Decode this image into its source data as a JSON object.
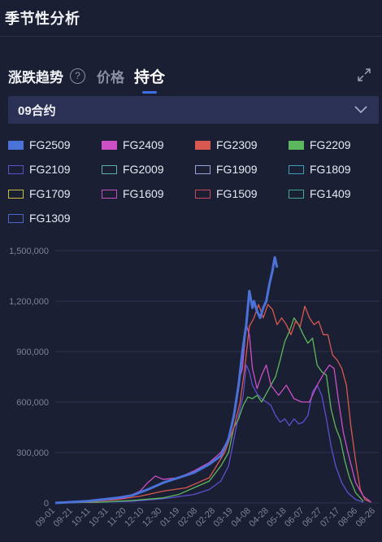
{
  "header": {
    "title": "季节性分析"
  },
  "tabs": {
    "trend": "涨跌趋势",
    "help": "?",
    "price": "价格",
    "holding": "持仓"
  },
  "select": {
    "value": "09合约"
  },
  "colors": {
    "background": "#1b1f33",
    "accent": "#3d6fe6",
    "select_bg": "#2a3155"
  },
  "chart_data": {
    "type": "line",
    "title": "",
    "xlabel": "",
    "ylabel": "",
    "ylim": [
      0,
      1500000
    ],
    "yticks": [
      "0",
      "300,000",
      "600,000",
      "900,000",
      "1,200,000",
      "1,500,000"
    ],
    "x_labels": [
      "09-01",
      "09-21",
      "10-11",
      "10-31",
      "11-20",
      "12-10",
      "12-30",
      "01-19",
      "02-08",
      "02-28",
      "03-19",
      "04-08",
      "04-28",
      "05-18",
      "06-07",
      "06-27",
      "07-17",
      "08-06",
      "08-26"
    ],
    "legend_position": "top",
    "grid": true,
    "series": [
      {
        "name": "FG2509",
        "color": "#4a72d9",
        "style": "filled",
        "values": [
          [
            0,
            0
          ],
          [
            20,
            5000
          ],
          [
            40,
            10000
          ],
          [
            60,
            20000
          ],
          [
            80,
            30000
          ],
          [
            100,
            45000
          ],
          [
            120,
            80000
          ],
          [
            140,
            120000
          ],
          [
            160,
            150000
          ],
          [
            180,
            180000
          ],
          [
            200,
            230000
          ],
          [
            215,
            280000
          ],
          [
            225,
            380000
          ],
          [
            232,
            520000
          ],
          [
            238,
            700000
          ],
          [
            243,
            900000
          ],
          [
            248,
            1060000
          ],
          [
            252,
            1260000
          ],
          [
            256,
            1160000
          ],
          [
            258,
            1200000
          ],
          [
            262,
            1140000
          ],
          [
            266,
            1100000
          ],
          [
            270,
            1160000
          ],
          [
            274,
            1200000
          ],
          [
            278,
            1300000
          ],
          [
            282,
            1380000
          ],
          [
            285,
            1460000
          ],
          [
            288,
            1400000
          ]
        ]
      },
      {
        "name": "FG2409",
        "color": "#cc4fc6",
        "style": "filled",
        "values": [
          [
            0,
            0
          ],
          [
            30,
            5000
          ],
          [
            60,
            15000
          ],
          [
            90,
            30000
          ],
          [
            110,
            70000
          ],
          [
            120,
            120000
          ],
          [
            130,
            160000
          ],
          [
            140,
            140000
          ],
          [
            160,
            150000
          ],
          [
            180,
            190000
          ],
          [
            200,
            240000
          ],
          [
            215,
            300000
          ],
          [
            225,
            380000
          ],
          [
            232,
            540000
          ],
          [
            238,
            720000
          ],
          [
            243,
            800000
          ],
          [
            248,
            1060000
          ],
          [
            252,
            1000000
          ],
          [
            256,
            800000
          ],
          [
            262,
            680000
          ],
          [
            268,
            760000
          ],
          [
            274,
            820000
          ],
          [
            280,
            700000
          ],
          [
            290,
            640000
          ],
          [
            300,
            700000
          ],
          [
            310,
            620000
          ],
          [
            320,
            600000
          ],
          [
            330,
            600000
          ],
          [
            340,
            700000
          ],
          [
            350,
            780000
          ],
          [
            356,
            820000
          ],
          [
            362,
            800000
          ],
          [
            368,
            600000
          ],
          [
            374,
            420000
          ],
          [
            380,
            300000
          ],
          [
            390,
            120000
          ],
          [
            400,
            40000
          ],
          [
            410,
            5000
          ]
        ]
      },
      {
        "name": "FG2309",
        "color": "#d9584f",
        "style": "filled",
        "values": [
          [
            0,
            0
          ],
          [
            40,
            5000
          ],
          [
            80,
            20000
          ],
          [
            110,
            40000
          ],
          [
            140,
            70000
          ],
          [
            170,
            90000
          ],
          [
            200,
            150000
          ],
          [
            220,
            300000
          ],
          [
            232,
            450000
          ],
          [
            240,
            600000
          ],
          [
            246,
            800000
          ],
          [
            252,
            1050000
          ],
          [
            258,
            1100000
          ],
          [
            264,
            1180000
          ],
          [
            270,
            1100000
          ],
          [
            276,
            1180000
          ],
          [
            282,
            1150000
          ],
          [
            288,
            1060000
          ],
          [
            294,
            1100000
          ],
          [
            300,
            1060000
          ],
          [
            306,
            1000000
          ],
          [
            312,
            1080000
          ],
          [
            318,
            1050000
          ],
          [
            324,
            1170000
          ],
          [
            330,
            1100000
          ],
          [
            336,
            1060000
          ],
          [
            342,
            1080000
          ],
          [
            348,
            1000000
          ],
          [
            354,
            1000000
          ],
          [
            360,
            880000
          ],
          [
            366,
            850000
          ],
          [
            372,
            800000
          ],
          [
            378,
            700000
          ],
          [
            384,
            450000
          ],
          [
            390,
            250000
          ],
          [
            396,
            80000
          ],
          [
            402,
            20000
          ],
          [
            410,
            5000
          ]
        ]
      },
      {
        "name": "FG2209",
        "color": "#5cb85c",
        "style": "filled",
        "values": [
          [
            0,
            0
          ],
          [
            60,
            5000
          ],
          [
            100,
            15000
          ],
          [
            140,
            30000
          ],
          [
            160,
            50000
          ],
          [
            180,
            90000
          ],
          [
            200,
            130000
          ],
          [
            215,
            220000
          ],
          [
            225,
            300000
          ],
          [
            232,
            450000
          ],
          [
            238,
            500000
          ],
          [
            244,
            580000
          ],
          [
            250,
            630000
          ],
          [
            256,
            620000
          ],
          [
            262,
            640000
          ],
          [
            268,
            600000
          ],
          [
            274,
            650000
          ],
          [
            280,
            700000
          ],
          [
            286,
            750000
          ],
          [
            292,
            850000
          ],
          [
            298,
            960000
          ],
          [
            304,
            1020000
          ],
          [
            310,
            1100000
          ],
          [
            316,
            1060000
          ],
          [
            322,
            1000000
          ],
          [
            328,
            950000
          ],
          [
            334,
            980000
          ],
          [
            340,
            820000
          ],
          [
            346,
            780000
          ],
          [
            352,
            760000
          ],
          [
            358,
            560000
          ],
          [
            364,
            450000
          ],
          [
            370,
            380000
          ],
          [
            376,
            250000
          ],
          [
            382,
            150000
          ],
          [
            390,
            60000
          ],
          [
            400,
            10000
          ]
        ]
      },
      {
        "name": "FG2109",
        "color": "#5e4fd1",
        "style": "outline",
        "values": [
          [
            0,
            0
          ],
          [
            60,
            5000
          ],
          [
            100,
            10000
          ],
          [
            140,
            25000
          ],
          [
            180,
            50000
          ],
          [
            200,
            80000
          ],
          [
            215,
            130000
          ],
          [
            225,
            220000
          ],
          [
            232,
            380000
          ],
          [
            238,
            520000
          ],
          [
            244,
            640000
          ],
          [
            248,
            820000
          ],
          [
            252,
            780000
          ],
          [
            256,
            700000
          ],
          [
            262,
            650000
          ],
          [
            268,
            620000
          ],
          [
            274,
            600000
          ],
          [
            280,
            580000
          ],
          [
            286,
            520000
          ],
          [
            292,
            480000
          ],
          [
            298,
            500000
          ],
          [
            304,
            460000
          ],
          [
            310,
            500000
          ],
          [
            316,
            470000
          ],
          [
            322,
            480000
          ],
          [
            328,
            520000
          ],
          [
            334,
            660000
          ],
          [
            340,
            700000
          ],
          [
            346,
            640000
          ],
          [
            352,
            500000
          ],
          [
            358,
            340000
          ],
          [
            364,
            220000
          ],
          [
            372,
            120000
          ],
          [
            380,
            60000
          ],
          [
            390,
            20000
          ],
          [
            400,
            5000
          ]
        ]
      },
      {
        "name": "FG2009",
        "color": "#5ab0a6",
        "style": "outline",
        "values": []
      },
      {
        "name": "FG1909",
        "color": "#9aa3d9",
        "style": "outline",
        "values": []
      },
      {
        "name": "FG1809",
        "color": "#3aa0b8",
        "style": "outline",
        "values": []
      },
      {
        "name": "FG1709",
        "color": "#c9bf3a",
        "style": "outline",
        "values": []
      },
      {
        "name": "FG1609",
        "color": "#c44fc0",
        "style": "outline",
        "values": []
      },
      {
        "name": "FG1509",
        "color": "#c94a57",
        "style": "outline",
        "values": []
      },
      {
        "name": "FG1409",
        "color": "#3fa88f",
        "style": "outline",
        "values": []
      },
      {
        "name": "FG1309",
        "color": "#4a66c9",
        "style": "outline",
        "values": []
      }
    ]
  }
}
